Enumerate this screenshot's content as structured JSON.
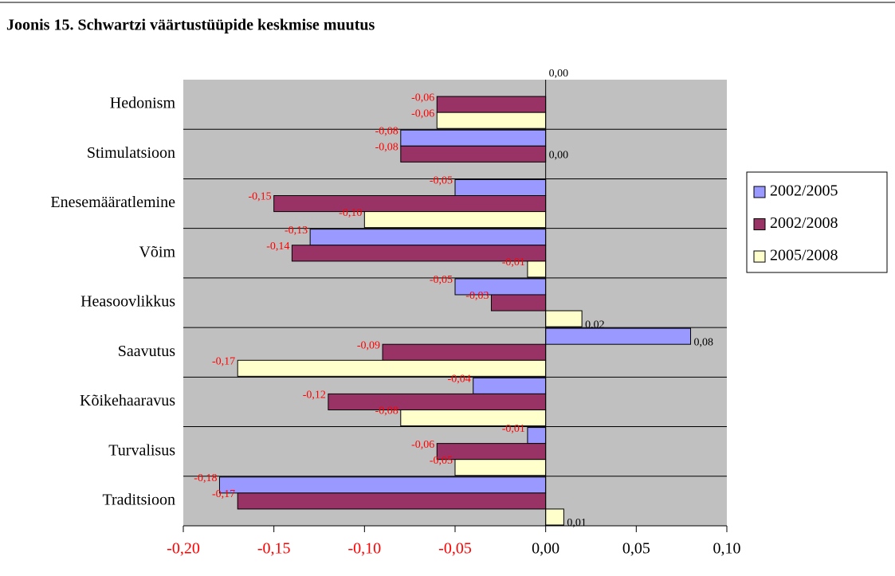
{
  "chart_data": {
    "type": "hbar",
    "title": "Joonis 15.  Schwartzi väärtustüüpide keskmise muutus",
    "categories": [
      "Hedonism",
      "Stimulatsioon",
      "Enesemääratlemine",
      "Võim",
      "Heasoovlikkus",
      "Saavutus",
      "Kõikehaaravus",
      "Turvalisus",
      "Traditsioon"
    ],
    "series": [
      {
        "name": "2002/2005",
        "color": "#9999ff",
        "values": [
          0.0,
          -0.08,
          -0.05,
          -0.13,
          -0.05,
          0.08,
          -0.04,
          -0.01,
          -0.18
        ],
        "value_labels": [
          "0,00",
          "-0,08",
          "-0,05",
          "-0,13",
          "-0,05",
          "0,08",
          "-0,04",
          "-0,01",
          "-0,18"
        ]
      },
      {
        "name": "2002/2008",
        "color": "#993366",
        "values": [
          -0.06,
          -0.08,
          -0.15,
          -0.14,
          -0.03,
          -0.09,
          -0.12,
          -0.06,
          -0.17
        ],
        "value_labels": [
          "-0,06",
          "-0,08",
          "-0,15",
          "-0,14",
          "-0,03",
          "-0,09",
          "-0,12",
          "-0,06",
          "-0,17"
        ]
      },
      {
        "name": "2005/2008",
        "color": "#ffffcc",
        "values": [
          -0.06,
          0.0,
          -0.1,
          -0.01,
          0.02,
          -0.17,
          -0.08,
          -0.05,
          0.01
        ],
        "value_labels": [
          "-0,06",
          "0,00",
          "-0,10",
          "-0,01",
          "0,02",
          "-0,17",
          "-0,08",
          "-0,05",
          "0,01"
        ]
      }
    ],
    "xlim": [
      -0.2,
      0.1
    ],
    "xticks": [
      {
        "value": -0.2,
        "label": "-0,20"
      },
      {
        "value": -0.15,
        "label": "-0,15"
      },
      {
        "value": -0.1,
        "label": "-0,10"
      },
      {
        "value": -0.05,
        "label": "-0,05"
      },
      {
        "value": 0,
        "label": "0,00"
      },
      {
        "value": 0.05,
        "label": "0,05"
      },
      {
        "value": 0.1,
        "label": "0,10"
      }
    ],
    "legend": "right"
  }
}
